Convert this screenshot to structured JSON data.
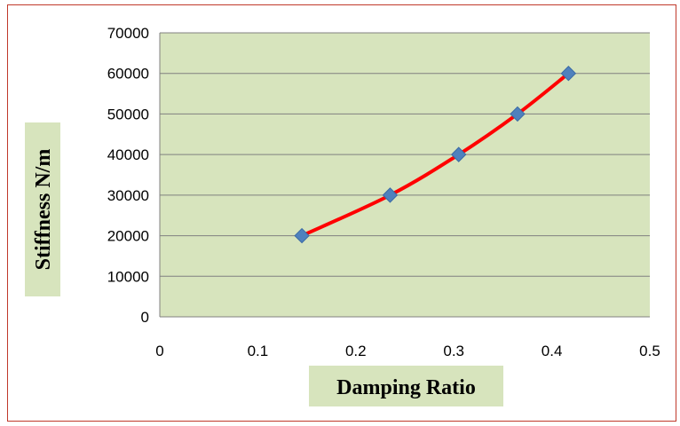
{
  "chart_data": {
    "type": "line",
    "title": "",
    "xlabel": "Damping Ratio",
    "ylabel": "Stiffness N/m",
    "xlim": [
      0,
      0.5
    ],
    "ylim": [
      0,
      70000
    ],
    "x_ticks": [
      "0",
      "0.1",
      "0.2",
      "0.3",
      "0.4",
      "0.5"
    ],
    "y_ticks": [
      "0",
      "10000",
      "20000",
      "30000",
      "40000",
      "50000",
      "60000",
      "70000"
    ],
    "grid": "horizontal",
    "legend": "none",
    "series": [
      {
        "x": [
          0.145,
          0.235,
          0.305,
          0.365,
          0.417
        ],
        "y": [
          20000,
          30000,
          40000,
          50000,
          60000
        ],
        "line_color": "#ff0000",
        "marker": "diamond",
        "marker_color": "#4f81bd"
      }
    ],
    "colors": {
      "plot_background": "#d7e4bd",
      "axis_title_background": "#d7e4bd",
      "gridline": "#808080",
      "frame_border": "#c0392b"
    }
  }
}
